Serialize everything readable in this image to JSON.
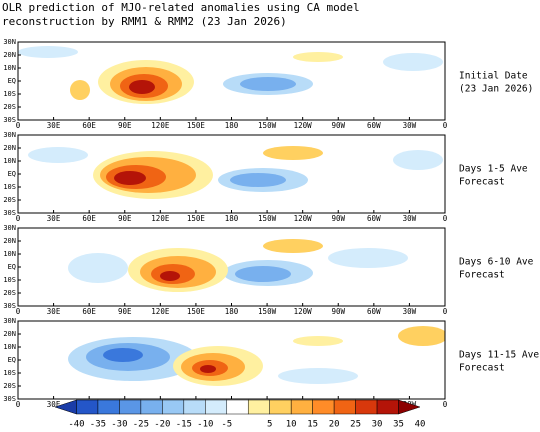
{
  "title": {
    "line1": "OLR prediction of MJO-related anomalies using CA model",
    "line2": "reconstruction by RMM1 & RMM2 (23 Jan 2026)"
  },
  "lat_labels": [
    "30N",
    "20N",
    "10N",
    "EQ",
    "10S",
    "20S",
    "30S"
  ],
  "lon_labels": [
    "0",
    "30E",
    "60E",
    "90E",
    "120E",
    "150E",
    "180",
    "150W",
    "120W",
    "90W",
    "60W",
    "30W",
    "0"
  ],
  "panels": [
    {
      "label": [
        "Initial Date",
        "(23 Jan 2026)"
      ]
    },
    {
      "label": [
        "Days 1-5 Ave",
        "Forecast"
      ]
    },
    {
      "label": [
        "Days 6-10 Ave",
        "Forecast"
      ]
    },
    {
      "label": [
        "Days 11-15 Ave",
        "Forecast"
      ]
    }
  ],
  "colorbar": {
    "labels": [
      -40,
      -35,
      -30,
      -25,
      -20,
      -15,
      -10,
      -5,
      5,
      10,
      15,
      20,
      25,
      30,
      35,
      40
    ],
    "colors": [
      "#1a3ca8",
      "#2456c8",
      "#3a78dc",
      "#5a96e6",
      "#78b0ee",
      "#98c8f4",
      "#b8dcf8",
      "#d4ecfc",
      "#ffffff",
      "#fff0a0",
      "#ffd060",
      "#ffb040",
      "#ff8c28",
      "#f06414",
      "#d8380c",
      "#b41408",
      "#8c0000"
    ]
  }
}
